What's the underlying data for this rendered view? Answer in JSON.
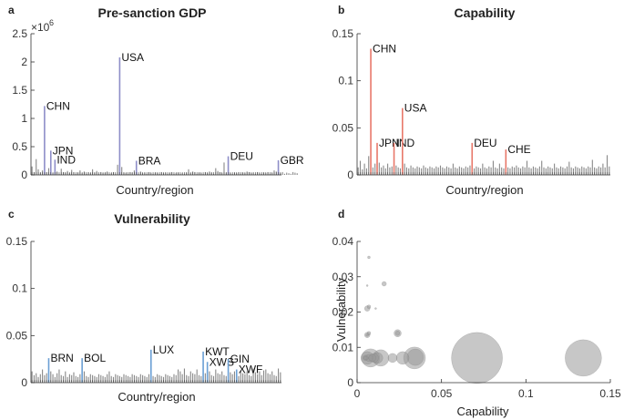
{
  "chart_data": [
    {
      "type": "bar",
      "panel_letter": "a",
      "title": "Pre-sanction GDP",
      "xlabel": "Country/region",
      "ylabel": "",
      "ylim": [
        0,
        2.5
      ],
      "y_ticks": [
        "0",
        "0.5",
        "1",
        "1.5",
        "2",
        "2.5"
      ],
      "exponent_label": "×10",
      "exponent_power": "6",
      "highlight_color": "#8e8ec8",
      "base_color": "#888888",
      "bar_count": 120,
      "highlighted": [
        {
          "label": "CHN",
          "index": 6,
          "value": 1.22
        },
        {
          "label": "JPN",
          "index": 9,
          "value": 0.43
        },
        {
          "label": "IND",
          "index": 11,
          "value": 0.27
        },
        {
          "label": "USA",
          "index": 42,
          "value": 2.08
        },
        {
          "label": "BRA",
          "index": 50,
          "value": 0.25
        },
        {
          "label": "DEU",
          "index": 94,
          "value": 0.33
        },
        {
          "label": "GBR",
          "index": 118,
          "value": 0.26
        }
      ],
      "background_values": [
        0.15,
        0.05,
        0.28,
        0.1,
        0.04,
        0.08,
        0.22,
        0.05,
        0.12,
        0.07,
        0.03,
        0.09,
        0.06,
        0.02,
        0.11,
        0.05,
        0.04,
        0.07,
        0.03,
        0.09,
        0.05,
        0.02,
        0.04,
        0.08,
        0.03,
        0.06,
        0.02,
        0.05,
        0.03,
        0.1,
        0.04,
        0.07,
        0.02,
        0.05,
        0.03,
        0.04,
        0.06,
        0.02,
        0.03,
        0.05,
        0.02,
        0.18,
        0.1,
        0.14,
        0.04,
        0.03,
        0.02,
        0.05,
        0.04,
        0.08,
        0.03,
        0.02,
        0.06,
        0.03,
        0.04,
        0.02,
        0.05,
        0.03,
        0.02,
        0.04,
        0.03,
        0.02,
        0.05,
        0.03,
        0.04,
        0.02,
        0.03,
        0.05,
        0.02,
        0.03,
        0.04,
        0.02,
        0.03,
        0.02,
        0.04,
        0.1,
        0.03,
        0.06,
        0.05,
        0.02,
        0.04,
        0.03,
        0.02,
        0.05,
        0.03,
        0.06,
        0.04,
        0.02,
        0.12,
        0.07,
        0.05,
        0.03,
        0.22,
        0.04,
        0.05,
        0.03,
        0.02,
        0.04,
        0.03,
        0.05,
        0.02,
        0.04,
        0.03,
        0.06,
        0.05,
        0.03,
        0.04,
        0.02,
        0.05,
        0.03,
        0.02,
        0.04,
        0.03,
        0.05,
        0.02,
        0.03,
        0.08,
        0.06,
        0.04,
        0.03,
        0.05,
        0.02,
        0.04,
        0.03,
        0.02,
        0.05,
        0.04,
        0.03
      ]
    },
    {
      "type": "bar",
      "panel_letter": "b",
      "title": "Capability",
      "xlabel": "Country/region",
      "ylabel": "",
      "ylim": [
        0,
        0.15
      ],
      "y_ticks": [
        "0",
        "0.05",
        "0.1",
        "0.15"
      ],
      "highlight_color": "#e8786a",
      "base_color": "#888888",
      "bar_count": 120,
      "background_fill": 0.008,
      "highlighted": [
        {
          "label": "CHN",
          "index": 6,
          "value": 0.134
        },
        {
          "label": "JPN",
          "index": 9,
          "value": 0.034
        },
        {
          "label": "IND",
          "index": 17,
          "value": 0.034
        },
        {
          "label": "USA",
          "index": 21,
          "value": 0.071
        },
        {
          "label": "DEU",
          "index": 54,
          "value": 0.034
        },
        {
          "label": "CHE",
          "index": 70,
          "value": 0.027
        }
      ],
      "background_values": [
        0.008,
        0.015,
        0.006,
        0.012,
        0.007,
        0.02,
        0.01,
        0.008,
        0.012,
        0.006,
        0.013,
        0.008,
        0.01,
        0.007,
        0.012,
        0.008,
        0.009,
        0.007,
        0.01,
        0.008,
        0.007,
        0.009,
        0.012,
        0.008,
        0.007,
        0.01,
        0.008,
        0.007,
        0.009,
        0.008,
        0.007,
        0.01,
        0.008,
        0.007,
        0.009,
        0.008,
        0.007,
        0.009,
        0.008,
        0.01,
        0.008,
        0.007,
        0.009,
        0.008,
        0.007,
        0.012,
        0.008,
        0.007,
        0.009,
        0.008,
        0.007,
        0.009,
        0.008,
        0.01,
        0.008,
        0.007,
        0.009,
        0.008,
        0.007,
        0.012,
        0.008,
        0.007,
        0.009,
        0.008,
        0.015,
        0.008,
        0.007,
        0.012,
        0.008,
        0.007,
        0.009,
        0.008,
        0.007,
        0.009,
        0.008,
        0.01,
        0.008,
        0.007,
        0.009,
        0.008,
        0.015,
        0.008,
        0.007,
        0.009,
        0.008,
        0.007,
        0.009,
        0.015,
        0.008,
        0.007,
        0.009,
        0.008,
        0.007,
        0.012,
        0.008,
        0.007,
        0.009,
        0.008,
        0.007,
        0.009,
        0.014,
        0.008,
        0.007,
        0.009,
        0.008,
        0.007,
        0.009,
        0.008,
        0.007,
        0.009,
        0.008,
        0.016,
        0.008,
        0.007,
        0.009,
        0.008,
        0.012,
        0.008,
        0.021,
        0.009
      ]
    },
    {
      "type": "bar",
      "panel_letter": "c",
      "title": "Vulnerability",
      "xlabel": "Country/region",
      "ylabel": "",
      "ylim": [
        0,
        0.15
      ],
      "y_ticks": [
        "0",
        "0.05",
        "0.1",
        "0.15"
      ],
      "highlight_color": "#6a9fd4",
      "base_color": "#888888",
      "bar_count": 120,
      "highlighted": [
        {
          "label": "BRN",
          "index": 8,
          "value": 0.026
        },
        {
          "label": "BOL",
          "index": 24,
          "value": 0.026
        },
        {
          "label": "LUX",
          "index": 57,
          "value": 0.035
        },
        {
          "label": "KWT",
          "index": 82,
          "value": 0.033
        },
        {
          "label": "XWS",
          "index": 84,
          "value": 0.022
        },
        {
          "label": "GIN",
          "index": 94,
          "value": 0.025
        },
        {
          "label": "XWF",
          "index": 98,
          "value": 0.014
        }
      ],
      "background_values": [
        0.012,
        0.008,
        0.01,
        0.006,
        0.009,
        0.014,
        0.008,
        0.01,
        0.007,
        0.012,
        0.009,
        0.006,
        0.01,
        0.014,
        0.008,
        0.007,
        0.012,
        0.006,
        0.009,
        0.008,
        0.011,
        0.007,
        0.006,
        0.009,
        0.008,
        0.012,
        0.007,
        0.006,
        0.009,
        0.008,
        0.007,
        0.006,
        0.009,
        0.008,
        0.007,
        0.006,
        0.009,
        0.012,
        0.007,
        0.006,
        0.009,
        0.008,
        0.007,
        0.006,
        0.009,
        0.008,
        0.007,
        0.006,
        0.009,
        0.008,
        0.007,
        0.006,
        0.009,
        0.008,
        0.007,
        0.006,
        0.009,
        0.008,
        0.007,
        0.006,
        0.009,
        0.008,
        0.007,
        0.006,
        0.009,
        0.008,
        0.007,
        0.006,
        0.009,
        0.008,
        0.014,
        0.012,
        0.009,
        0.015,
        0.008,
        0.007,
        0.012,
        0.01,
        0.009,
        0.014,
        0.008,
        0.007,
        0.016,
        0.01,
        0.009,
        0.012,
        0.008,
        0.007,
        0.014,
        0.01,
        0.009,
        0.012,
        0.008,
        0.007,
        0.015,
        0.011,
        0.009,
        0.012,
        0.016,
        0.007,
        0.013,
        0.01,
        0.009,
        0.012,
        0.008,
        0.007,
        0.015,
        0.011,
        0.009,
        0.012,
        0.008,
        0.013,
        0.014,
        0.01,
        0.009,
        0.012,
        0.008,
        0.007,
        0.015,
        0.011
      ]
    },
    {
      "type": "scatter",
      "panel_letter": "d",
      "title": "",
      "xlabel": "Capability",
      "ylabel": "Vulnerability",
      "xlim": [
        0,
        0.15
      ],
      "ylim": [
        0,
        0.04
      ],
      "x_ticks": [
        "0",
        "0.05",
        "0.1",
        "0.15"
      ],
      "y_ticks": [
        "0",
        "0.01",
        "0.02",
        "0.03",
        "0.04"
      ],
      "point_color": "#999999",
      "points": [
        {
          "x": 0.071,
          "y": 0.007,
          "size": 28
        },
        {
          "x": 0.134,
          "y": 0.007,
          "size": 20
        },
        {
          "x": 0.034,
          "y": 0.007,
          "size": 12
        },
        {
          "x": 0.0345,
          "y": 0.0072,
          "size": 9
        },
        {
          "x": 0.027,
          "y": 0.007,
          "size": 7
        },
        {
          "x": 0.021,
          "y": 0.007,
          "size": 5
        },
        {
          "x": 0.014,
          "y": 0.007,
          "size": 9
        },
        {
          "x": 0.012,
          "y": 0.007,
          "size": 6
        },
        {
          "x": 0.008,
          "y": 0.007,
          "size": 10
        },
        {
          "x": 0.006,
          "y": 0.007,
          "size": 7
        },
        {
          "x": 0.007,
          "y": 0.007,
          "size": 4
        },
        {
          "x": 0.01,
          "y": 0.007,
          "size": 5
        },
        {
          "x": 0.005,
          "y": 0.007,
          "size": 3
        },
        {
          "x": 0.009,
          "y": 0.007,
          "size": 4
        },
        {
          "x": 0.006,
          "y": 0.0135,
          "size": 3
        },
        {
          "x": 0.007,
          "y": 0.014,
          "size": 2
        },
        {
          "x": 0.006,
          "y": 0.021,
          "size": 3
        },
        {
          "x": 0.007,
          "y": 0.0215,
          "size": 2
        },
        {
          "x": 0.011,
          "y": 0.021,
          "size": 1
        },
        {
          "x": 0.024,
          "y": 0.014,
          "size": 4
        },
        {
          "x": 0.024,
          "y": 0.014,
          "size": 2.5
        },
        {
          "x": 0.016,
          "y": 0.028,
          "size": 2.5
        },
        {
          "x": 0.007,
          "y": 0.0355,
          "size": 1.5
        },
        {
          "x": 0.005,
          "y": 0.007,
          "size": 2
        },
        {
          "x": 0.006,
          "y": 0.0135,
          "size": 1.5
        },
        {
          "x": 0.006,
          "y": 0.0275,
          "size": 1
        }
      ]
    }
  ]
}
